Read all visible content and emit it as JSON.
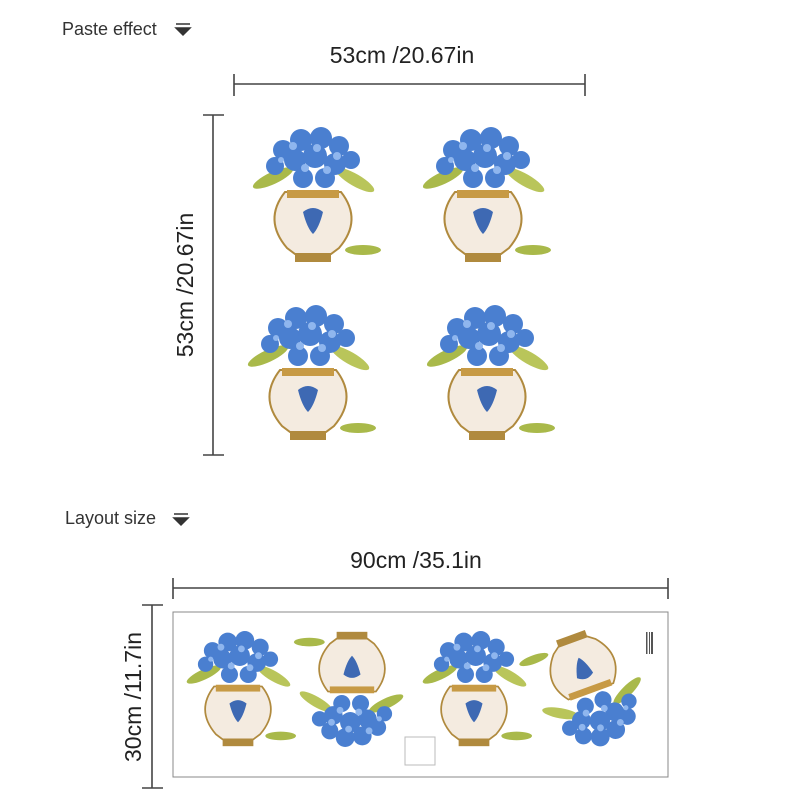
{
  "paste_effect": {
    "title": "Paste effect",
    "width_label": "53cm /20.67in",
    "height_label": "53cm /20.67in"
  },
  "layout_size": {
    "title": "Layout size",
    "width_label": "90cm /35.1in",
    "height_label": "30cm /11.7in"
  }
}
